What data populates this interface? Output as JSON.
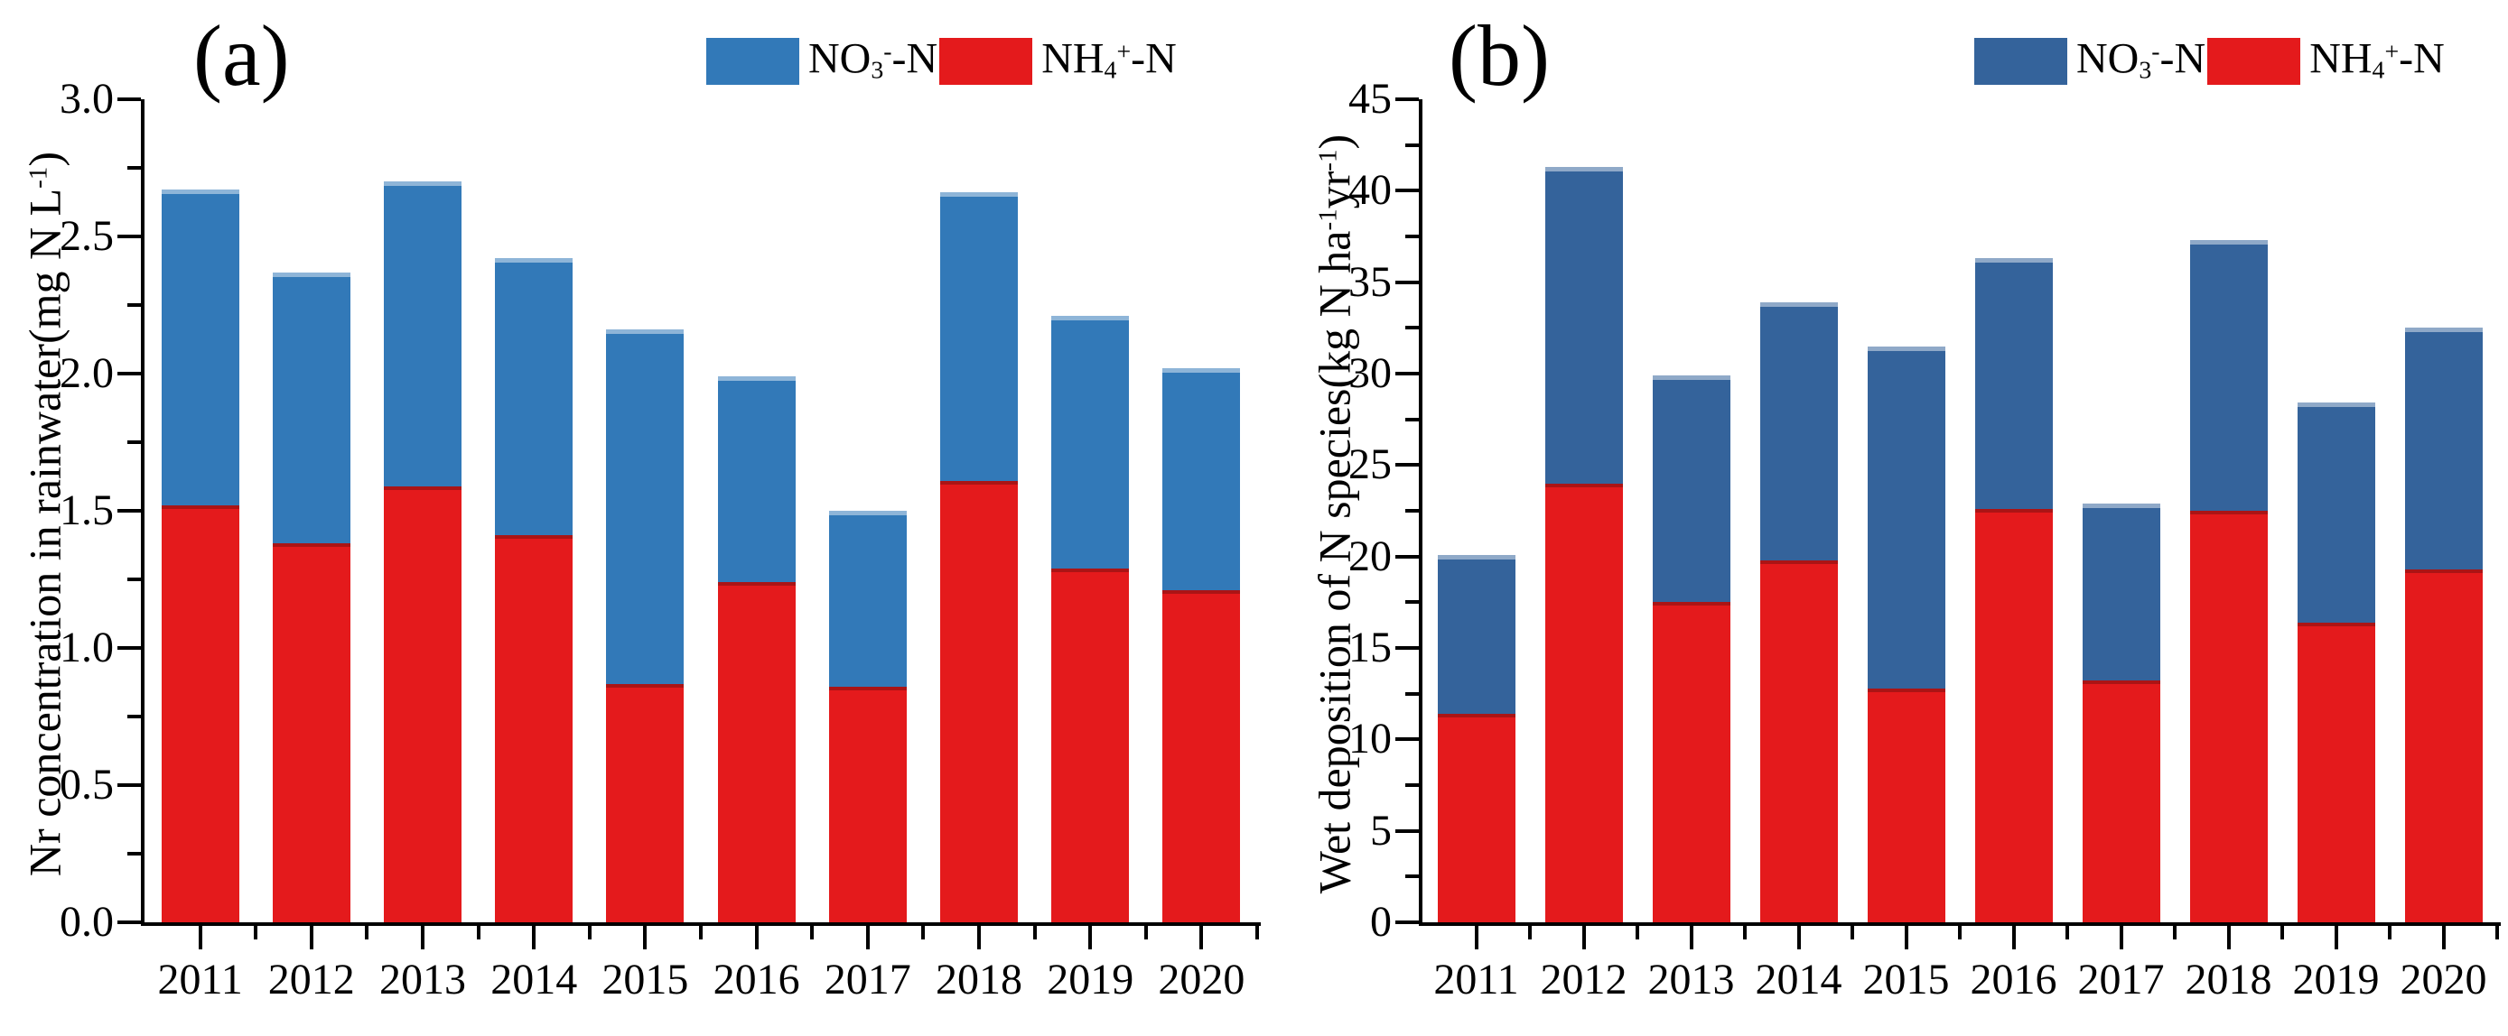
{
  "figure": {
    "background": "#ffffff",
    "text_color": "#000000",
    "axis_color": "#000000"
  },
  "chart_data": [
    {
      "id": "a",
      "panel_label": "(a)",
      "type": "bar",
      "stacked": true,
      "orientation": "vertical",
      "categories": [
        "2011",
        "2012",
        "2013",
        "2014",
        "2015",
        "2016",
        "2017",
        "2018",
        "2019",
        "2020"
      ],
      "series": [
        {
          "key": "no3",
          "name": "NO₃⁻-N",
          "color": "#3279b8",
          "stack": "top",
          "label_segments": [
            {
              "t": "NO"
            },
            {
              "t": "3",
              "sub": true
            },
            {
              "t": "-",
              "sup": true
            },
            {
              "t": "-N"
            }
          ],
          "values": [
            1.15,
            0.99,
            1.11,
            1.01,
            1.29,
            0.75,
            0.64,
            1.05,
            0.92,
            0.81
          ]
        },
        {
          "key": "nh4",
          "name": "NH₄⁺-N",
          "color": "#e41a1c",
          "stack": "bottom",
          "label_segments": [
            {
              "t": "NH"
            },
            {
              "t": "4",
              "sub": true
            },
            {
              "t": "+",
              "sup": true
            },
            {
              "t": "-N"
            }
          ],
          "values": [
            1.52,
            1.38,
            1.59,
            1.41,
            0.87,
            1.24,
            0.86,
            1.61,
            1.29,
            1.21
          ]
        }
      ],
      "totals": [
        2.67,
        2.37,
        2.7,
        2.42,
        2.16,
        1.99,
        1.5,
        2.66,
        2.21,
        2.02
      ],
      "ylabel": "Nr concentration in rainwater(mg N L⁻¹)",
      "ylabel_segments": [
        {
          "t": "Nr concentration in rainwater(mg N L"
        },
        {
          "t": "-1",
          "sup": true
        },
        {
          "t": ")"
        }
      ],
      "xlabel": "",
      "ylim": [
        0,
        3.0
      ],
      "yticks": [
        "0.0",
        "0.5",
        "1.0",
        "1.5",
        "2.0",
        "2.5",
        "3.0"
      ],
      "minor_ticks_between_majors": 1,
      "grid": false,
      "legend_position": "top-right"
    },
    {
      "id": "b",
      "panel_label": "(b)",
      "type": "bar",
      "stacked": true,
      "orientation": "vertical",
      "categories": [
        "2011",
        "2012",
        "2013",
        "2014",
        "2015",
        "2016",
        "2017",
        "2018",
        "2019",
        "2020"
      ],
      "series": [
        {
          "key": "no3",
          "name": "NO₃⁻-N",
          "color": "#34639b",
          "stack": "top",
          "label_segments": [
            {
              "t": "NO"
            },
            {
              "t": "3",
              "sub": true
            },
            {
              "t": "-",
              "sup": true
            },
            {
              "t": "-N"
            }
          ],
          "values": [
            8.7,
            17.3,
            12.4,
            14.1,
            18.7,
            13.7,
            9.7,
            14.8,
            12.0,
            13.2
          ]
        },
        {
          "key": "nh4",
          "name": "NH₄⁺-N",
          "color": "#e41a1c",
          "stack": "bottom",
          "label_segments": [
            {
              "t": "NH"
            },
            {
              "t": "4",
              "sub": true
            },
            {
              "t": "+",
              "sup": true
            },
            {
              "t": "-N"
            }
          ],
          "values": [
            11.4,
            24.0,
            17.5,
            19.8,
            12.8,
            22.6,
            13.2,
            22.5,
            16.4,
            19.3
          ]
        }
      ],
      "totals": [
        20.1,
        41.3,
        29.9,
        33.9,
        31.5,
        36.3,
        22.9,
        37.3,
        28.4,
        32.5
      ],
      "ylabel": "Wet deposition of N species(kg N ha⁻¹yr⁻¹)",
      "ylabel_segments": [
        {
          "t": "Wet deposition of N species(kg N ha"
        },
        {
          "t": "-1",
          "sup": true
        },
        {
          "t": "yr"
        },
        {
          "t": "-1",
          "sup": true
        },
        {
          "t": ")"
        }
      ],
      "xlabel": "",
      "ylim": [
        0,
        45
      ],
      "yticks": [
        "0",
        "5",
        "10",
        "15",
        "20",
        "25",
        "30",
        "35",
        "40",
        "45"
      ],
      "minor_ticks_between_majors": 1,
      "grid": false,
      "legend_position": "top-right"
    }
  ]
}
